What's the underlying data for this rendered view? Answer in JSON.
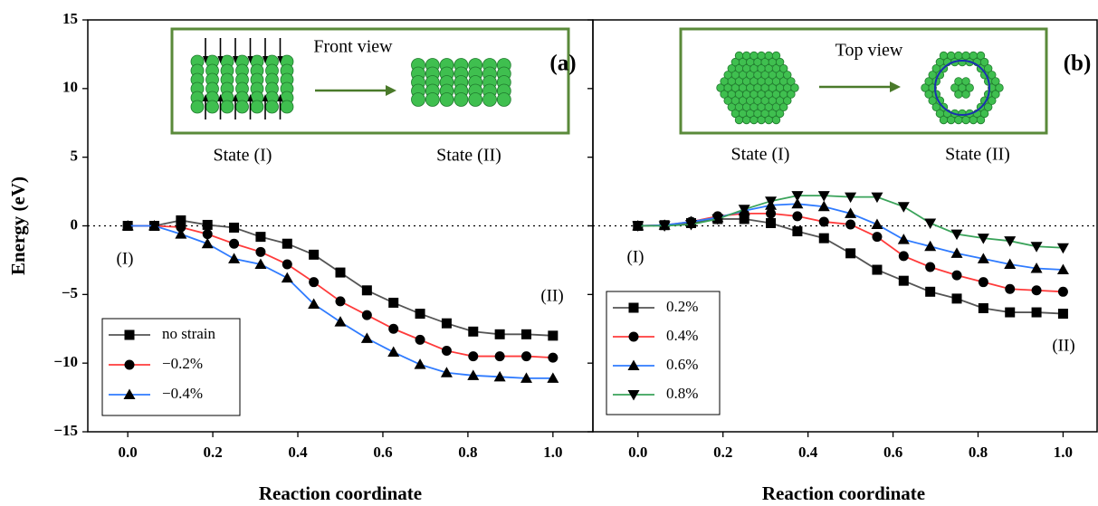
{
  "chart_data": [
    {
      "type": "line",
      "panel_label": "(a)",
      "ylabel": "Energy (eV)",
      "xlabel": "Reaction coordinate",
      "inset": {
        "view": "Front view",
        "left_label": "State (I)",
        "right_label": "State (II)"
      },
      "annotations": [
        "(I)",
        "(II)"
      ],
      "x": [
        0,
        0.0625,
        0.125,
        0.1875,
        0.25,
        0.3125,
        0.375,
        0.4375,
        0.5,
        0.5625,
        0.625,
        0.6875,
        0.75,
        0.8125,
        0.875,
        0.9375,
        1
      ],
      "series": [
        {
          "name": "no strain",
          "color": "#555555",
          "marker": "square",
          "values": [
            0,
            0,
            0.4,
            0.07,
            -0.13,
            -0.8,
            -1.3,
            -2.1,
            -3.4,
            -4.7,
            -5.6,
            -6.4,
            -7.1,
            -7.7,
            -7.9,
            -7.9,
            -8.0
          ]
        },
        {
          "name": "−0.2%",
          "color": "#ff3b3b",
          "marker": "circle",
          "values": [
            0,
            0,
            -0.1,
            -0.6,
            -1.3,
            -1.9,
            -2.8,
            -4.1,
            -5.5,
            -6.5,
            -7.5,
            -8.3,
            -9.1,
            -9.5,
            -9.5,
            -9.5,
            -9.6
          ]
        },
        {
          "name": "−0.4%",
          "color": "#2f7bff",
          "marker": "triangle-up",
          "values": [
            0,
            0,
            -0.6,
            -1.3,
            -2.4,
            -2.8,
            -3.8,
            -5.7,
            -7.0,
            -8.2,
            -9.2,
            -10.1,
            -10.7,
            -10.9,
            -11.0,
            -11.1,
            -11.1
          ]
        }
      ],
      "marker_color": "#000000",
      "legend": "lower left",
      "reference_line": 0,
      "xlim": [
        -0.094,
        1.094
      ],
      "ylim": [
        -15,
        15
      ],
      "xticks": [
        {
          "value": 0,
          "label": "0.0"
        },
        0.2,
        0.4,
        0.6,
        0.8,
        {
          "value": 1,
          "label": "1.0"
        }
      ],
      "yticks": [
        {
          "value": -15,
          "label": "−15"
        },
        {
          "value": -10,
          "label": "−10"
        },
        {
          "value": -5,
          "label": "−5"
        },
        0,
        5,
        10,
        15
      ]
    },
    {
      "type": "line",
      "panel_label": "(b)",
      "xlabel": "Reaction coordinate",
      "inset": {
        "view": "Top view",
        "left_label": "State (I)",
        "right_label": "State (II)"
      },
      "annotations": [
        "(I)",
        "(II)"
      ],
      "x": [
        0,
        0.0625,
        0.125,
        0.1875,
        0.25,
        0.3125,
        0.375,
        0.4375,
        0.5,
        0.5625,
        0.625,
        0.6875,
        0.75,
        0.8125,
        0.875,
        0.9375,
        1
      ],
      "series": [
        {
          "name": "0.2%",
          "color": "#555555",
          "marker": "square",
          "values": [
            0,
            0.05,
            0.2,
            0.5,
            0.5,
            0.2,
            -0.4,
            -0.9,
            -2.0,
            -3.2,
            -4.0,
            -4.8,
            -5.3,
            -6.0,
            -6.3,
            -6.3,
            -6.4
          ]
        },
        {
          "name": "0.4%",
          "color": "#ff3b3b",
          "marker": "circle",
          "values": [
            0,
            0.05,
            0.3,
            0.7,
            0.9,
            0.9,
            0.7,
            0.3,
            0.1,
            -0.8,
            -2.2,
            -3.0,
            -3.6,
            -4.1,
            -4.6,
            -4.7,
            -4.8
          ]
        },
        {
          "name": "0.6%",
          "color": "#2f7bff",
          "marker": "triangle-up",
          "values": [
            0,
            0.05,
            0.3,
            0.6,
            1.1,
            1.5,
            1.6,
            1.4,
            0.9,
            0.1,
            -1.0,
            -1.5,
            -2.0,
            -2.4,
            -2.8,
            -3.1,
            -3.2
          ]
        },
        {
          "name": "0.8%",
          "color": "#3aa35a",
          "marker": "triangle-down",
          "values": [
            0,
            0,
            0.1,
            0.5,
            1.2,
            1.8,
            2.2,
            2.2,
            2.1,
            2.1,
            1.4,
            0.2,
            -0.6,
            -0.9,
            -1.1,
            -1.5,
            -1.6
          ]
        }
      ],
      "marker_color": "#000000",
      "legend": "center left",
      "reference_line": 0,
      "xlim": [
        -0.106,
        1.08
      ],
      "ylim": [
        -15,
        15
      ],
      "xticks": [
        {
          "value": 0,
          "label": "0.0"
        },
        0.2,
        0.4,
        0.6,
        0.8,
        {
          "value": 1,
          "label": "1.0"
        }
      ],
      "yticks": [
        -15,
        -10,
        -5,
        0,
        5,
        10,
        15
      ]
    }
  ]
}
